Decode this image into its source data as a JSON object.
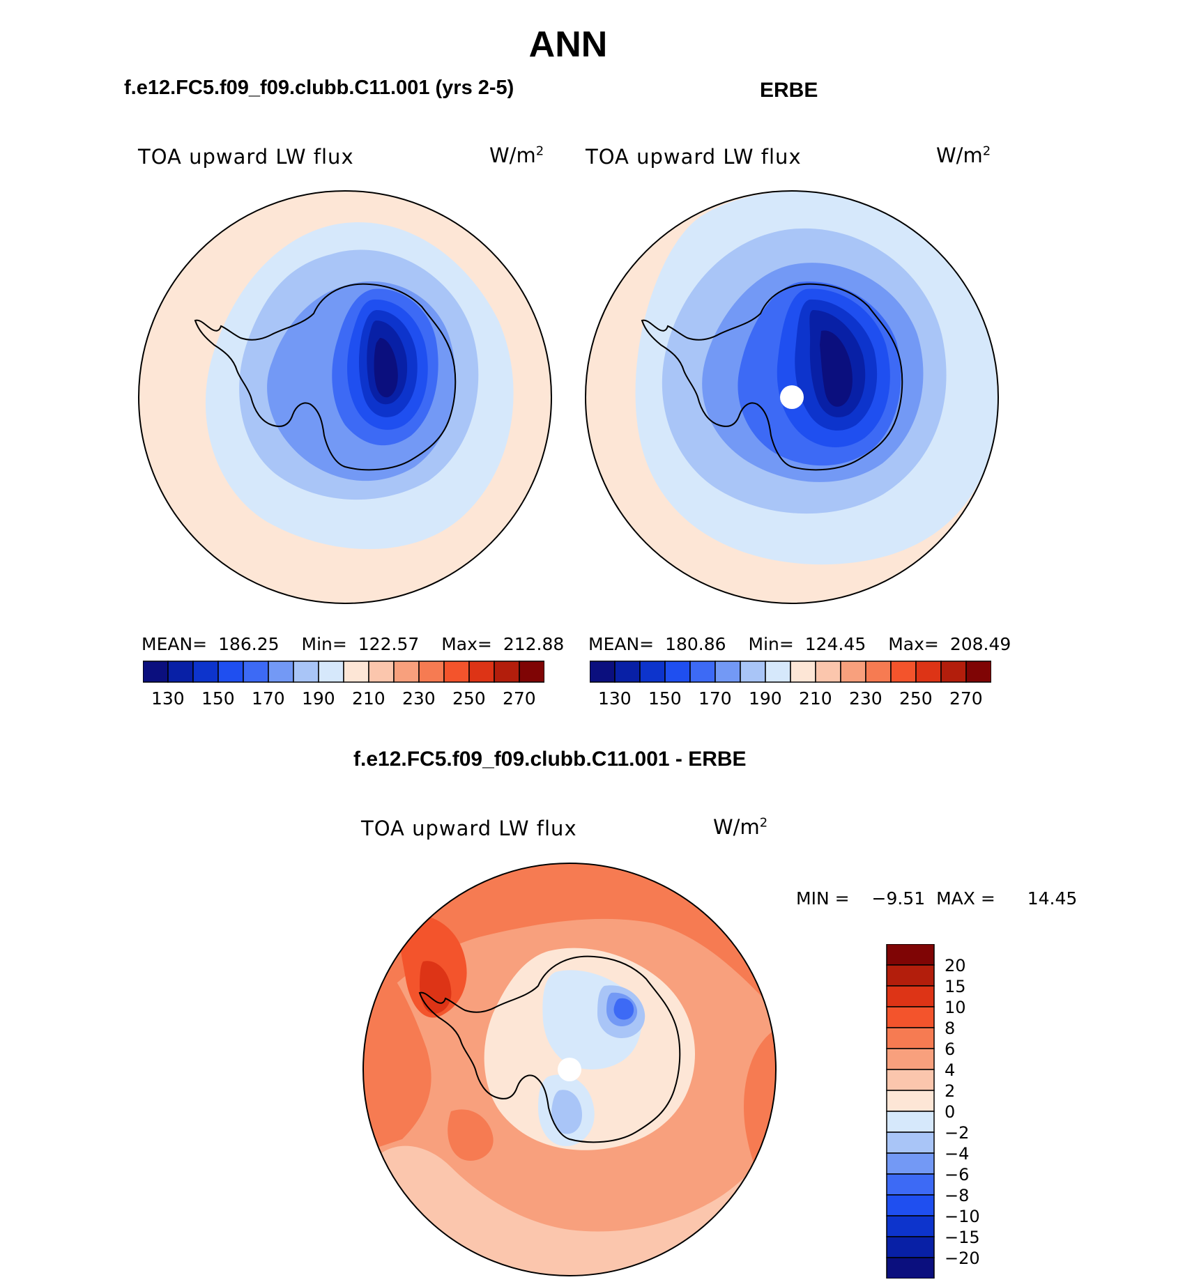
{
  "page_title": "ANN",
  "left_panel": {
    "case_title": "f.e12.FC5.f09_f09.clubb.C11.001 (yrs 2-5)",
    "variable": "TOA upward LW flux",
    "units": "W/m",
    "units_exp": "2",
    "stats": {
      "mean_label": "MEAN=",
      "mean": "186.25",
      "min_label": "Min=",
      "min": "122.57",
      "max_label": "Max=",
      "max": "212.88"
    }
  },
  "right_panel": {
    "case_title": "ERBE",
    "variable": "TOA upward LW flux",
    "units": "W/m",
    "units_exp": "2",
    "stats": {
      "mean_label": "MEAN=",
      "mean": "180.86",
      "min_label": "Min=",
      "min": "124.45",
      "max_label": "Max=",
      "max": "208.49"
    }
  },
  "abs_colorbar": {
    "colors": [
      "#0b0f7e",
      "#0820a6",
      "#0d34cc",
      "#1f4ff0",
      "#3d6af5",
      "#7399f5",
      "#a9c5f7",
      "#d6e8fb",
      "#fde6d6",
      "#fbc6ad",
      "#f8a07d",
      "#f67b52",
      "#f3542c",
      "#dd3416",
      "#b31e0c",
      "#7f0505"
    ],
    "tick_labels": [
      "130",
      "150",
      "170",
      "190",
      "210",
      "230",
      "250",
      "270"
    ]
  },
  "diff_panel": {
    "title": "f.e12.FC5.f09_f09.clubb.C11.001 - ERBE",
    "variable": "TOA upward LW flux",
    "units": "W/m",
    "units_exp": "2",
    "min_label": "MIN =",
    "min": "−9.51",
    "max_label": "MAX =",
    "max": "14.45"
  },
  "diff_colorbar": {
    "colors": [
      "#7f0505",
      "#b31e0c",
      "#dd3416",
      "#f3542c",
      "#f67b52",
      "#f8a07d",
      "#fbc6ad",
      "#fde6d6",
      "#d6e8fb",
      "#a9c5f7",
      "#7399f5",
      "#3d6af5",
      "#1f4ff0",
      "#0d34cc",
      "#0820a6",
      "#0b0f7e"
    ],
    "tick_labels": [
      "20",
      "15",
      "10",
      "8",
      "6",
      "4",
      "2",
      "0",
      "−2",
      "−4",
      "−6",
      "−8",
      "−10",
      "−15",
      "−20"
    ]
  },
  "colors": {
    "land_outline": "#000000",
    "pole_marker": "#ffffff",
    "background": "#ffffff"
  }
}
